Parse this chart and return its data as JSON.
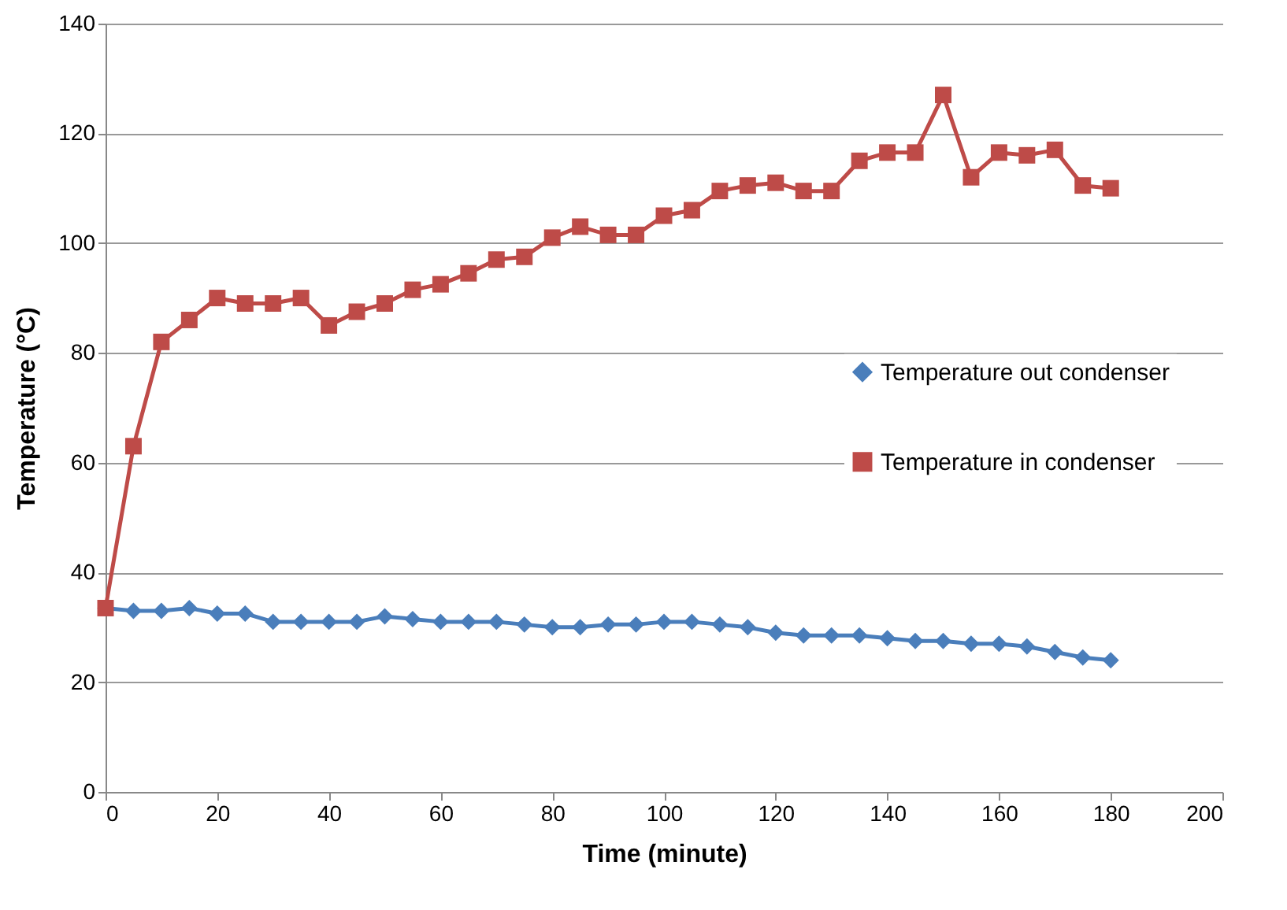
{
  "chart_data": {
    "type": "line",
    "xlabel": "Time (minute)",
    "ylabel": "Temperature (°C)",
    "x": [
      0,
      5,
      10,
      15,
      20,
      25,
      30,
      35,
      40,
      45,
      50,
      55,
      60,
      65,
      70,
      75,
      80,
      85,
      90,
      95,
      100,
      105,
      110,
      115,
      120,
      125,
      130,
      135,
      140,
      145,
      150,
      155,
      160,
      165,
      170,
      175,
      180
    ],
    "series": [
      {
        "name": "Temperature out condenser",
        "color": "#4a7ebb",
        "marker": "diamond",
        "values": [
          33.5,
          33,
          33,
          33.5,
          32.5,
          32.5,
          31,
          31,
          31,
          31,
          32,
          31.5,
          31,
          31,
          31,
          30.5,
          30,
          30,
          30.5,
          30.5,
          31,
          31,
          30.5,
          30,
          29,
          28.5,
          28.5,
          28.5,
          28,
          27.5,
          27.5,
          27,
          27,
          26.5,
          25.5,
          24.5,
          24
        ]
      },
      {
        "name": "Temperature in condenser",
        "color": "#be4b48",
        "marker": "square",
        "values": [
          33.5,
          63,
          82,
          86,
          90,
          89,
          89,
          90,
          85,
          87.5,
          89,
          91.5,
          92.5,
          94.5,
          97,
          97.5,
          101,
          103,
          101.5,
          101.5,
          105,
          106,
          109.5,
          110.5,
          111,
          109.5,
          109.5,
          115,
          116.5,
          116.5,
          127,
          112,
          116.5,
          116,
          117,
          110.5,
          110
        ]
      }
    ],
    "xlim": [
      0,
      200
    ],
    "xticks": [
      0,
      20,
      40,
      60,
      80,
      100,
      120,
      140,
      160,
      180,
      200
    ],
    "ylim": [
      0,
      140
    ],
    "yticks": [
      0,
      20,
      40,
      60,
      80,
      100,
      120,
      140
    ],
    "grid": "y",
    "legend": "right",
    "line_style": "solid"
  }
}
